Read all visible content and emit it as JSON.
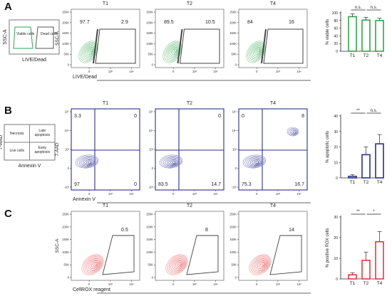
{
  "figure": {
    "panels": [
      {
        "letter": "A",
        "color": "#2ea64a",
        "schematic": {
          "ylabel": "SSC-A",
          "xlabel": "LIVE/Dead",
          "gates": [
            "Viable cells",
            "Dead cells"
          ]
        },
        "plot_ylabel": "SSC-A",
        "plot_xlabel": "LIVE/Dead",
        "plots": [
          {
            "title": "T1",
            "values": [
              "97.7",
              "2.9"
            ]
          },
          {
            "title": "T2",
            "values": [
              "89.5",
              "10.5"
            ]
          },
          {
            "title": "T4",
            "values": [
              "84",
              "16"
            ]
          }
        ]
      },
      {
        "letter": "B",
        "color": "#2a2f8f",
        "schematic": {
          "ylabel": "7-AAD",
          "xlabel": "Annexin V",
          "quadrants": [
            "Necrosis",
            "Late apoptosis",
            "Live cells",
            "Early apoptosis"
          ]
        },
        "plot_ylabel": "7-AAD",
        "plot_xlabel": "Annexin V",
        "plots": [
          {
            "title": "T1",
            "values": [
              "3.3",
              "0",
              "97",
              "0"
            ]
          },
          {
            "title": "T2",
            "values": [
              "",
              "0",
              "83.5",
              "14.7"
            ]
          },
          {
            "title": "T4",
            "values": [
              "0",
              "8",
              "75.3",
              "16.7"
            ]
          }
        ]
      },
      {
        "letter": "C",
        "color": "#e63a3a",
        "plot_ylabel": "SSC-A",
        "plot_xlabel": "CellROX reagent",
        "plots": [
          {
            "title": "T1",
            "values": [
              "0.5"
            ]
          },
          {
            "title": "T2",
            "values": [
              "8"
            ]
          },
          {
            "title": "T4",
            "values": [
              "14"
            ]
          }
        ]
      }
    ],
    "axis_ticks": {
      "x": [
        "0",
        "10³",
        "10⁴"
      ],
      "y_ssc": [
        "250K",
        "200K",
        "150K",
        "100K",
        "50K",
        "0"
      ],
      "y_log": [
        "10⁵",
        "10⁴",
        "10³",
        "0",
        "-10³"
      ]
    }
  },
  "chart_data": [
    {
      "type": "bar",
      "categories": [
        "T1",
        "T2",
        "T4"
      ],
      "values": [
        90,
        81,
        80
      ],
      "errors": [
        7,
        7,
        6
      ],
      "ylabel": "% viable cells",
      "ylim": [
        0,
        100
      ],
      "yticks": [
        "0",
        "20",
        "40",
        "60",
        "80",
        "100"
      ],
      "significance": [
        {
          "from": "T1",
          "to": "T2",
          "label": "n.s."
        },
        {
          "from": "T2",
          "to": "T4",
          "label": "n.s."
        }
      ]
    },
    {
      "type": "bar",
      "categories": [
        "T1",
        "T2",
        "T4"
      ],
      "values": [
        1,
        15,
        22
      ],
      "errors": [
        1,
        5,
        6
      ],
      "ylabel": "% apoptotic cells",
      "ylim": [
        0,
        40
      ],
      "yticks": [
        "0",
        "10",
        "20",
        "30",
        "40"
      ],
      "significance": [
        {
          "from": "T1",
          "to": "T2",
          "label": "**"
        },
        {
          "from": "T2",
          "to": "T4",
          "label": "n.s."
        }
      ]
    },
    {
      "type": "bar",
      "categories": [
        "T1",
        "T2",
        "T4"
      ],
      "values": [
        2,
        9,
        18
      ],
      "errors": [
        1,
        4,
        5
      ],
      "ylabel": "% positive ROX cells",
      "ylim": [
        0,
        30
      ],
      "yticks": [
        "0",
        "10",
        "20",
        "30"
      ],
      "significance": [
        {
          "from": "T1",
          "to": "T2",
          "label": "**"
        },
        {
          "from": "T2",
          "to": "T4",
          "label": "*"
        }
      ]
    }
  ]
}
